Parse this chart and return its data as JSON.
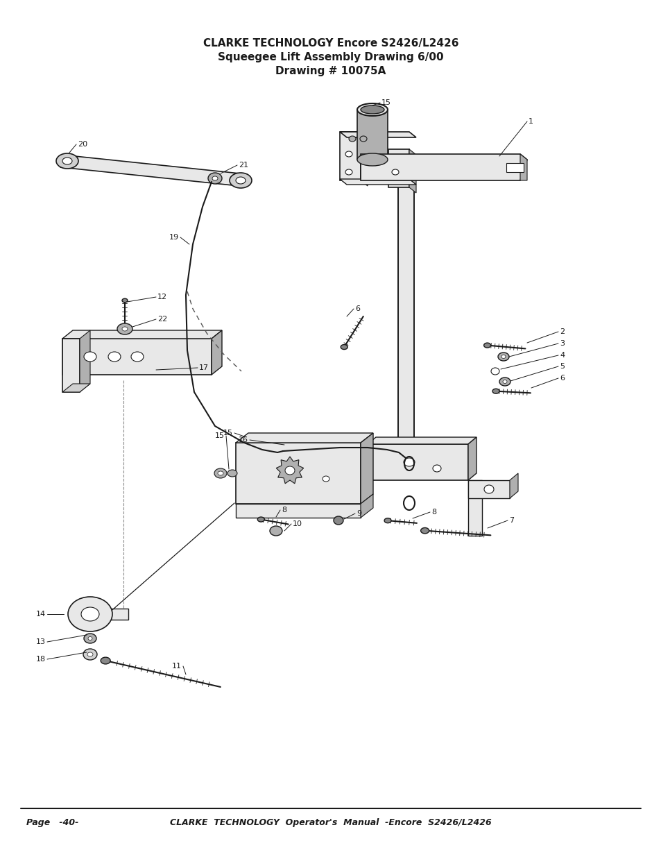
{
  "title_line1": "CLARKE TECHNOLOGY Encore S2426/L2426",
  "title_line2": "Squeegee Lift Assembly Drawing 6/00",
  "title_line3": "Drawing # 10075A",
  "footer_left": "Page   -40-",
  "footer_right": "CLARKE  TECHNOLOGY  Operator's  Manual  -Encore  S2426/L2426",
  "bg_color": "#ffffff",
  "lc": "#1a1a1a",
  "fill_light": "#e8e8e8",
  "fill_mid": "#d0d0d0",
  "fill_dark": "#b0b0b0",
  "fill_vdark": "#888888"
}
